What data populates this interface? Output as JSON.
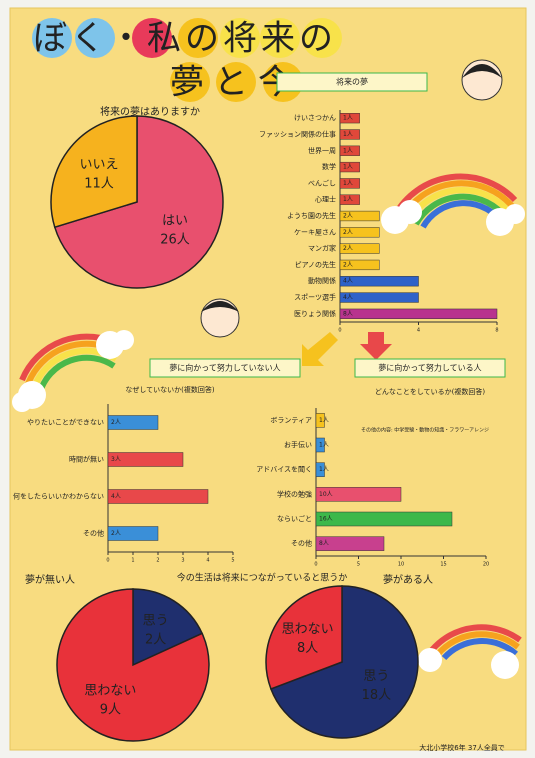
{
  "title_line1": "ぼく・私の将来の",
  "title_line2": "夢と今",
  "question": "今の生活は将来につながっていると思うか",
  "footer": "大北小学校6年 37人全員で",
  "chart_data": [
    {
      "type": "pie",
      "title": "将来の夢はありますか",
      "categories": [
        "はい",
        "いいえ"
      ],
      "values": [
        26,
        11
      ],
      "value_labels": [
        "26人",
        "11人"
      ],
      "colors": [
        "#e8506e",
        "#f6b21e"
      ]
    },
    {
      "type": "hbar",
      "title": "将来の夢",
      "categories": [
        "けいさつかん",
        "ファッション関係の仕事",
        "世界一周",
        "数学",
        "べんごし",
        "心理士",
        "ようち園の先生",
        "ケーキ屋さん",
        "マンガ家",
        "ピアノの先生",
        "動物関係",
        "スポーツ選手",
        "医りょう関係"
      ],
      "values": [
        1,
        1,
        1,
        1,
        1,
        1,
        2,
        2,
        2,
        2,
        4,
        4,
        8
      ],
      "value_labels": [
        "1人",
        "1人",
        "1人",
        "1人",
        "1人",
        "1人",
        "2人",
        "2人",
        "2人",
        "2人",
        "4人",
        "4人",
        "8人"
      ],
      "colors": [
        "#e0483a",
        "#e0483a",
        "#e0483a",
        "#e0483a",
        "#e0483a",
        "#e0483a",
        "#f6c21e",
        "#f6c21e",
        "#f6c21e",
        "#f6c21e",
        "#2f62c8",
        "#2f62c8",
        "#b8338e"
      ],
      "xlim": [
        0,
        8
      ],
      "xticks": [
        0,
        4,
        8
      ]
    },
    {
      "type": "hbar",
      "title": "夢に向かって努力していない人",
      "subtitle": "なぜしていないか(複数回答)",
      "categories": [
        "やりたいことができない",
        "時間が無い",
        "何をしたらいいかわからない",
        "その他"
      ],
      "values": [
        2,
        3,
        4,
        2
      ],
      "value_labels": [
        "2人",
        "3人",
        "4人",
        "2人"
      ],
      "colors": [
        "#3a8fd8",
        "#e8484a",
        "#e8484a",
        "#3a8fd8"
      ],
      "xlim": [
        0,
        5
      ],
      "xticks": [
        0,
        1,
        2,
        3,
        4,
        5
      ]
    },
    {
      "type": "hbar",
      "title": "夢に向かって努力している人",
      "subtitle": "どんなことをしているか(複数回答)",
      "annotation": "その他の内容: 中学受験・動物の知識・フラワーアレンジ",
      "categories": [
        "ボランティア",
        "お手伝い",
        "アドバイスを聞く",
        "学校の勉強",
        "ならいごと",
        "その他"
      ],
      "values": [
        1,
        1,
        1,
        10,
        16,
        8
      ],
      "value_labels": [
        "1人",
        "1人",
        "1人",
        "10人",
        "16人",
        "8人"
      ],
      "colors": [
        "#f6c21e",
        "#3a8fd8",
        "#3a8fd8",
        "#e8506e",
        "#3cb84a",
        "#c8408e"
      ],
      "xlim": [
        0,
        20
      ],
      "xticks": [
        0,
        5,
        10,
        15,
        20
      ]
    },
    {
      "type": "pie",
      "title": "夢が無い人",
      "categories": [
        "思う",
        "思わない"
      ],
      "values": [
        2,
        9
      ],
      "value_labels": [
        "2人",
        "9人"
      ],
      "colors": [
        "#1f2f6e",
        "#e8323a"
      ]
    },
    {
      "type": "pie",
      "title": "夢がある人",
      "categories": [
        "思う",
        "思わない"
      ],
      "values": [
        18,
        8
      ],
      "value_labels": [
        "18人",
        "8人"
      ],
      "colors": [
        "#1f2f6e",
        "#e8323a"
      ]
    }
  ]
}
